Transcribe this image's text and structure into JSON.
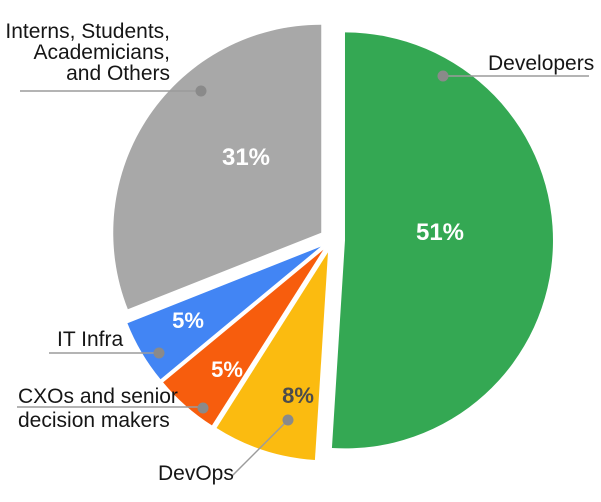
{
  "chart_data": {
    "type": "pie",
    "title": "",
    "legend_position": "outside-callouts",
    "direction": "clockwise",
    "start_angle_deg": 0,
    "background_color": "#ffffff",
    "leader_line_color": "#9b9b9b",
    "leader_dot_color": "#8a8a8a",
    "label_text_color": "#161616",
    "slices": [
      {
        "name": "developers",
        "label": "Developers",
        "label_lines": [
          "Developers"
        ],
        "value": 51,
        "value_label": "51%",
        "color": "#34A853",
        "value_text_color": "#ffffff"
      },
      {
        "name": "devops",
        "label": "DevOps",
        "label_lines": [
          "DevOps"
        ],
        "value": 8,
        "value_label": "8%",
        "color": "#FBBB10",
        "value_text_color": "#4c4c4c"
      },
      {
        "name": "cxos",
        "label": "CXOs and senior decision makers",
        "label_lines": [
          "CXOs and senior",
          "decision makers"
        ],
        "value": 5,
        "value_label": "5%",
        "color": "#F75D0D",
        "value_text_color": "#ffffff"
      },
      {
        "name": "it-infra",
        "label": "IT Infra",
        "label_lines": [
          "IT Infra"
        ],
        "value": 5,
        "value_label": "5%",
        "color": "#4285F4",
        "value_text_color": "#ffffff"
      },
      {
        "name": "interns",
        "label": "Interns, Students, Academicians, and Others",
        "label_lines": [
          "Interns, Students,",
          "Academicians,",
          "and Others"
        ],
        "value": 31,
        "value_label": "31%",
        "color": "#A8A8A8",
        "value_text_color": "#ffffff"
      }
    ]
  }
}
